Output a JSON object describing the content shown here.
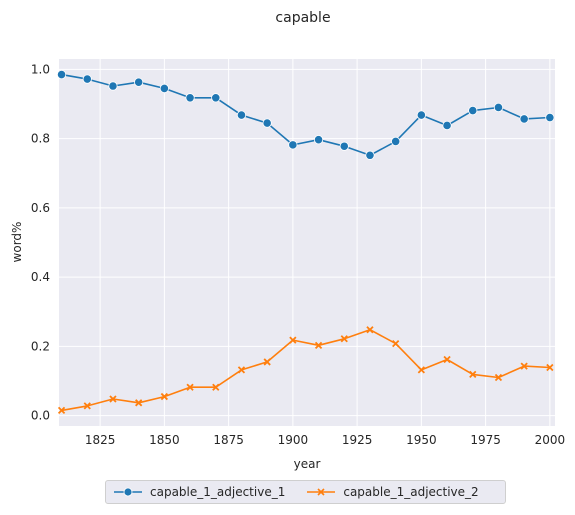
{
  "chart_data": {
    "type": "line",
    "title": "capable",
    "xlabel": "year",
    "ylabel": "word%",
    "xlim": [
      1809,
      2002
    ],
    "ylim": [
      -0.03,
      1.03
    ],
    "xticks": [
      1825,
      1850,
      1875,
      1900,
      1925,
      1950,
      1975,
      2000
    ],
    "yticks": [
      0.0,
      0.2,
      0.4,
      0.6,
      0.8,
      1.0
    ],
    "xtick_labels": [
      "1825",
      "1850",
      "1875",
      "1900",
      "1925",
      "1950",
      "1975",
      "2000"
    ],
    "ytick_labels": [
      "0.0",
      "0.2",
      "0.4",
      "0.6",
      "0.8",
      "1.0"
    ],
    "grid": true,
    "legend_position": "bottom-center",
    "x": [
      1810,
      1820,
      1830,
      1840,
      1850,
      1860,
      1870,
      1880,
      1890,
      1900,
      1910,
      1920,
      1930,
      1940,
      1950,
      1960,
      1970,
      1980,
      1990,
      2000
    ],
    "series": [
      {
        "name": "capable_1_adjective_1",
        "color": "#1f77b4",
        "marker": "circle",
        "values": [
          0.985,
          0.972,
          0.952,
          0.963,
          0.945,
          0.918,
          0.918,
          0.868,
          0.845,
          0.782,
          0.797,
          0.778,
          0.752,
          0.792,
          0.868,
          0.838,
          0.881,
          0.89,
          0.857,
          0.861
        ]
      },
      {
        "name": "capable_1_adjective_2",
        "color": "#ff7f0e",
        "marker": "x",
        "values": [
          0.015,
          0.028,
          0.048,
          0.037,
          0.055,
          0.082,
          0.082,
          0.132,
          0.155,
          0.218,
          0.203,
          0.222,
          0.248,
          0.208,
          0.132,
          0.162,
          0.119,
          0.11,
          0.143,
          0.139
        ]
      }
    ]
  }
}
